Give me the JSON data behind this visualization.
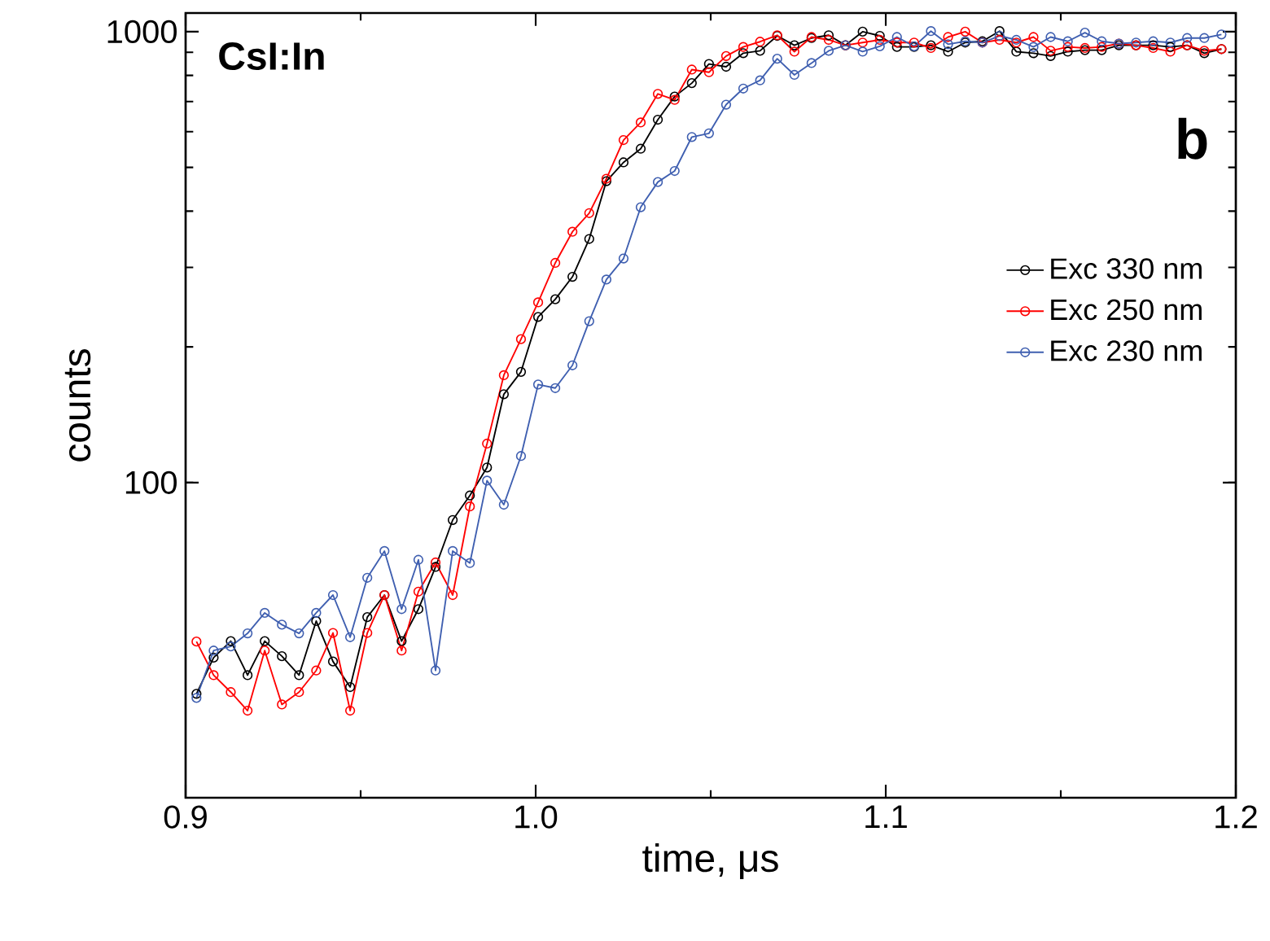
{
  "chart_data": {
    "type": "line",
    "xlabel": "time, μs",
    "ylabel": "counts",
    "annotations": [
      "CsI:In",
      "b"
    ],
    "x": [
      0.9031,
      0.908,
      0.9129,
      0.9177,
      0.9226,
      0.9275,
      0.9324,
      0.9373,
      0.9421,
      0.947,
      0.9519,
      0.9568,
      0.9617,
      0.9665,
      0.9714,
      0.9763,
      0.9812,
      0.9861,
      0.9909,
      0.9958,
      1.0007,
      1.0056,
      1.0105,
      1.0153,
      1.0202,
      1.0251,
      1.03,
      1.0349,
      1.0397,
      1.0446,
      1.0495,
      1.0544,
      1.0593,
      1.0641,
      1.069,
      1.0739,
      1.0788,
      1.0837,
      1.0885,
      1.0934,
      1.0983,
      1.1032,
      1.1081,
      1.1129,
      1.1178,
      1.1227,
      1.1276,
      1.1325,
      1.1373,
      1.1422,
      1.1471,
      1.152,
      1.1569,
      1.1617,
      1.1666,
      1.1715,
      1.1764,
      1.1813,
      1.1861,
      1.191,
      1.1959
    ],
    "series": [
      {
        "name": "Exc 330 nm",
        "color": "#000000",
        "values": [
          34,
          40.9,
          44.5,
          37.4,
          44.5,
          41.2,
          37.4,
          49.3,
          40.1,
          35.2,
          50.3,
          56.3,
          44.5,
          52.4,
          65,
          82.6,
          93.6,
          108,
          157,
          176,
          233,
          255,
          286,
          347,
          466,
          513,
          550,
          638,
          718,
          769,
          848,
          836,
          896,
          907,
          979,
          933,
          968,
          982,
          933,
          1000,
          979,
          925,
          925,
          933,
          903,
          946,
          952,
          1003,
          903,
          896,
          883,
          903,
          910,
          910,
          933,
          933,
          933,
          925,
          933,
          896,
          915
        ]
      },
      {
        "name": "Exc 250 nm",
        "color": "#ff0000",
        "values": [
          44.4,
          37.4,
          34.3,
          31.2,
          42.4,
          32.2,
          34.3,
          38.3,
          46.4,
          31.2,
          46.4,
          56.3,
          42.4,
          57.3,
          66.5,
          56.3,
          88.5,
          122,
          173,
          208,
          251,
          307,
          360,
          396,
          472,
          575,
          629,
          728,
          706,
          824,
          813,
          883,
          925,
          950,
          982,
          903,
          973,
          959,
          933,
          946,
          959,
          946,
          946,
          920,
          973,
          1000,
          946,
          959,
          946,
          973,
          907,
          925,
          920,
          925,
          941,
          933,
          920,
          903,
          933,
          907,
          915
        ]
      },
      {
        "name": "Exc 230 nm",
        "color": "#3f5fb0",
        "values": [
          33.3,
          42.4,
          43.3,
          46.3,
          51.4,
          48.4,
          46.3,
          51.4,
          56.3,
          45.4,
          61.5,
          70.5,
          52.4,
          67.4,
          38.3,
          70.5,
          66.3,
          101,
          89.3,
          114.5,
          165,
          162,
          182,
          228,
          282,
          314,
          408,
          464,
          491,
          584,
          595,
          689,
          748,
          780,
          871,
          802,
          852,
          907,
          933,
          903,
          928,
          973,
          928,
          1003,
          938,
          952,
          946,
          979,
          959,
          925,
          973,
          952,
          995,
          952,
          941,
          946,
          952,
          946,
          968,
          968,
          986
        ]
      }
    ],
    "xlim": [
      0.9,
      1.2
    ],
    "xticks": [
      0.9,
      {
        "value": 1.0,
        "label": "1.0"
      },
      1.1,
      1.2
    ],
    "ylim": [
      20,
      1100
    ],
    "yticks": [
      100,
      1000
    ],
    "log": true,
    "legend": "right",
    "marker": "circle",
    "line_style": "solid",
    "grid": false
  }
}
